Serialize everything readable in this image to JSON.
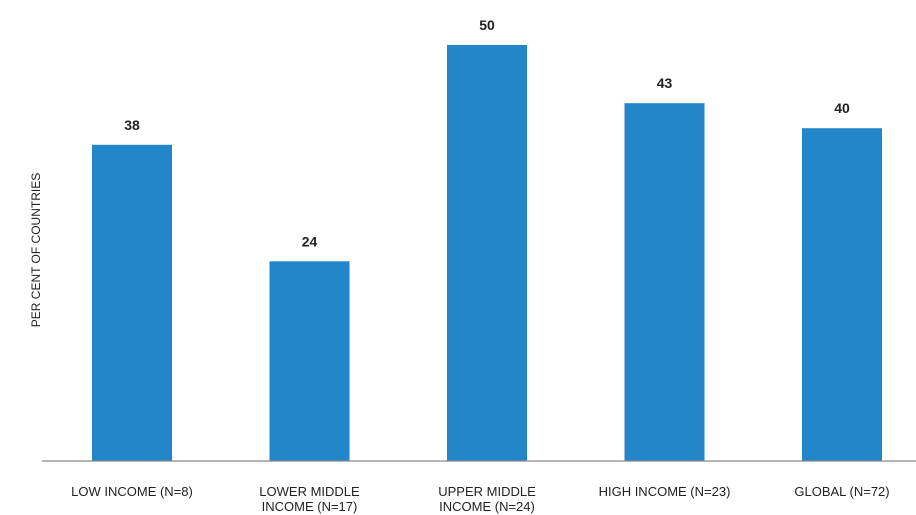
{
  "chart_data": {
    "type": "bar",
    "title": "",
    "xlabel": "",
    "ylabel": "PER CENT OF COUNTRIES",
    "categories": [
      [
        "LOW INCOME (N=8)"
      ],
      [
        "LOWER MIDDLE",
        "INCOME (N=17)"
      ],
      [
        "UPPER MIDDLE",
        "INCOME (N=24)"
      ],
      [
        "HIGH INCOME (N=23)"
      ],
      [
        "GLOBAL (N=72)"
      ]
    ],
    "values": [
      38,
      24,
      50,
      43,
      40
    ],
    "ylim": [
      0,
      50
    ],
    "grid": false,
    "bar_color": "#2386C8",
    "axis_color": "#888888"
  }
}
